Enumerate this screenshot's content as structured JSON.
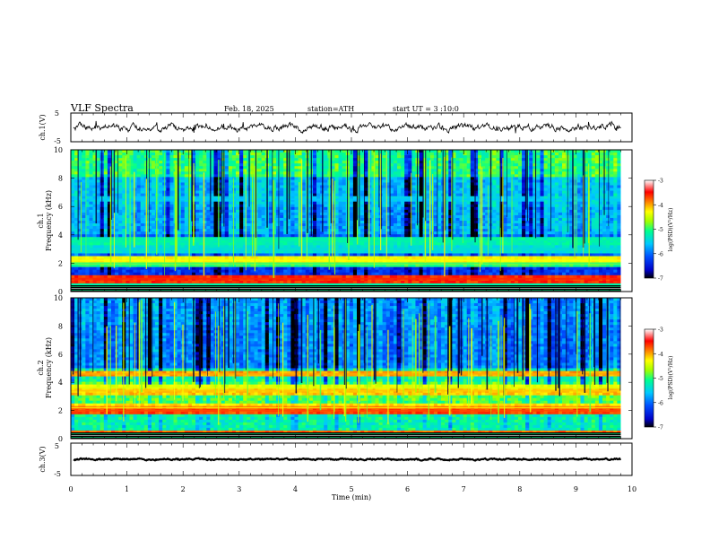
{
  "header": {
    "title": "VLF  Spectra",
    "date": "Feb. 18, 2025",
    "station": "station=ATH",
    "start_ut": "start  UT  =   3  :10:0"
  },
  "chart_data": [
    {
      "type": "line",
      "name": "ch1-waveform",
      "ylabel": "ch.1(V)",
      "ylim": [
        -5,
        5
      ],
      "yticks": [
        "5",
        "-5"
      ],
      "xlim": [
        0,
        10
      ],
      "baseline_value": 0,
      "amplitude_range": [
        -1.5,
        1.5
      ]
    },
    {
      "type": "heatmap",
      "name": "ch1-spectrogram",
      "ylabel_channel": "ch.1",
      "ylabel": "Frequency  (kHz)",
      "ylim": [
        0,
        10
      ],
      "yticks": [
        "0",
        "2",
        "4",
        "6",
        "8",
        "10"
      ],
      "xlim": [
        0,
        9.8
      ],
      "colorbar": {
        "label": "log(PSD)(V²/Hz)",
        "range": [
          -7,
          -3
        ],
        "ticks": [
          "-3",
          "-4",
          "-5",
          "-6",
          "-7"
        ]
      },
      "bands_khz": [
        {
          "f": 2.2,
          "level": -4.3
        },
        {
          "f": 2.0,
          "level": -5.0
        },
        {
          "f": 3.6,
          "level": -5.2
        },
        {
          "f": 3.0,
          "level": -5.4
        },
        {
          "f": 6.5,
          "level": -5.6
        },
        {
          "f": 0.9,
          "level": -3.6
        },
        {
          "f": 0.5,
          "level": -5.2
        }
      ]
    },
    {
      "type": "heatmap",
      "name": "ch2-spectrogram",
      "ylabel_channel": "ch.2",
      "ylabel": "Frequency  (kHz)",
      "ylim": [
        0,
        10
      ],
      "yticks": [
        "0",
        "2",
        "4",
        "6",
        "8",
        "10"
      ],
      "xlim": [
        0,
        9.8
      ],
      "colorbar": {
        "label": "log(PSD)(V²/Hz)",
        "range": [
          -7,
          -3
        ],
        "ticks": [
          "-3",
          "-4",
          "-5",
          "-6",
          "-7"
        ]
      },
      "bands_khz": [
        {
          "f": 2.0,
          "level": -3.7
        },
        {
          "f": 2.2,
          "level": -4.2
        },
        {
          "f": 3.4,
          "level": -4.1
        },
        {
          "f": 3.6,
          "level": -4.4
        },
        {
          "f": 4.6,
          "level": -4.0
        },
        {
          "f": 0.3,
          "level": -3.8
        }
      ]
    },
    {
      "type": "line",
      "name": "ch3-waveform",
      "ylabel": "ch.3(V)",
      "ylim": [
        -5,
        5
      ],
      "yticks": [
        "5",
        "-5"
      ],
      "xlim": [
        0,
        10
      ],
      "baseline_value": 0,
      "amplitude_range": [
        -0.3,
        0.3
      ]
    }
  ],
  "xaxis": {
    "label": "Time  (min)",
    "range": [
      0,
      10
    ],
    "ticks": [
      "0",
      "1",
      "2",
      "3",
      "4",
      "5",
      "6",
      "7",
      "8",
      "9",
      "10"
    ]
  },
  "colors": {
    "colormap": [
      "#000000",
      "#0000c8",
      "#0050ff",
      "#00c8ff",
      "#00ff90",
      "#a0ff00",
      "#ffff00",
      "#ff8000",
      "#ff0000",
      "#ffffff"
    ],
    "waveform": "#000000",
    "axes": "#000000"
  }
}
